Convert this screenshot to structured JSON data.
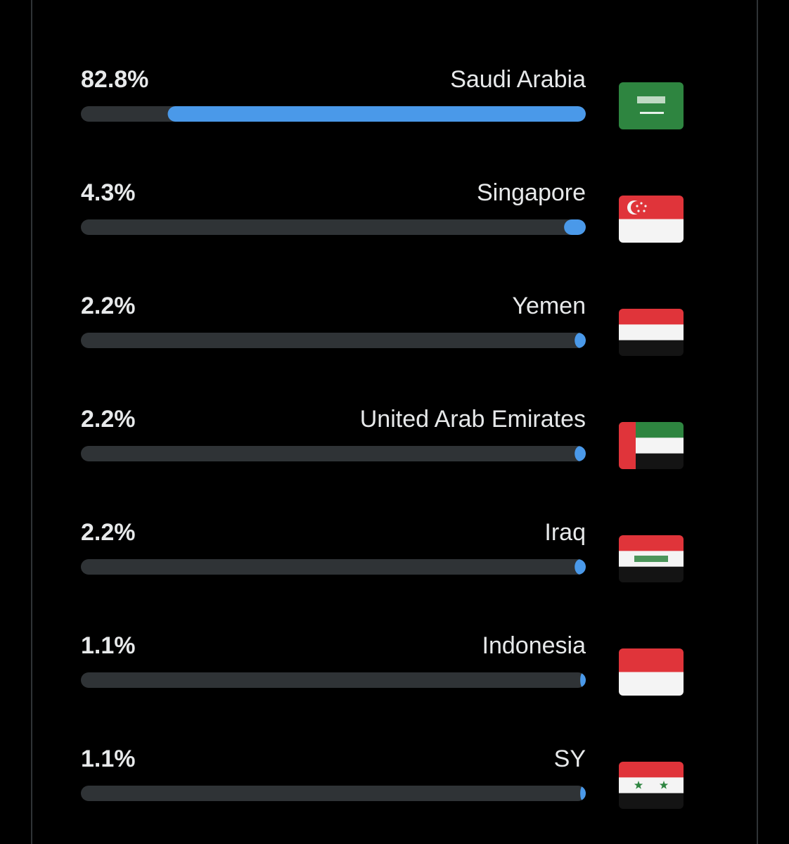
{
  "chart_data": {
    "type": "bar",
    "orientation": "horizontal",
    "categories": [
      "Saudi Arabia",
      "Singapore",
      "Yemen",
      "United Arab Emirates",
      "Iraq",
      "Indonesia",
      "SY"
    ],
    "values": [
      82.8,
      4.3,
      2.2,
      2.2,
      2.2,
      1.1,
      1.1
    ],
    "value_labels": [
      "82.8%",
      "4.3%",
      "2.2%",
      "2.2%",
      "2.2%",
      "1.1%",
      "1.1%"
    ],
    "color": "#4a99e9",
    "xlim": [
      0,
      100
    ]
  }
}
